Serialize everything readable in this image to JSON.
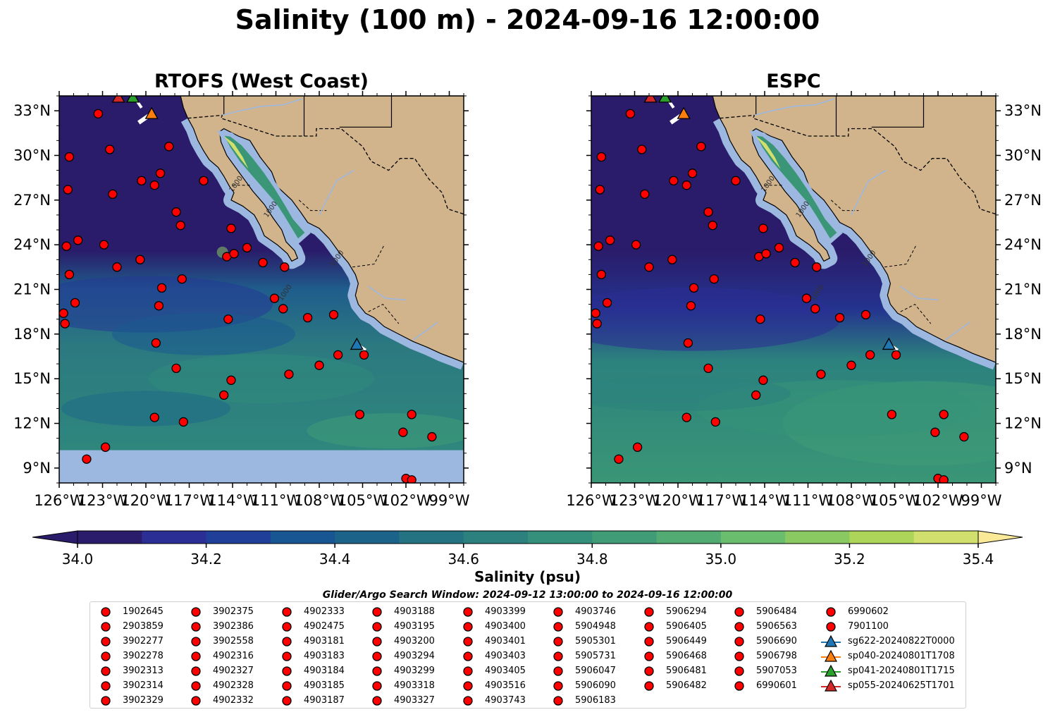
{
  "title": "Salinity (100 m) - 2024-09-16 12:00:00",
  "panels": [
    {
      "title": "RTOFS (West Coast)"
    },
    {
      "title": "ESPC"
    }
  ],
  "map": {
    "lon_ticks": [
      "126°W",
      "123°W",
      "120°W",
      "117°W",
      "114°W",
      "111°W",
      "108°W",
      "105°W",
      "102°W",
      "99°W"
    ],
    "lat_ticks": [
      "33°N",
      "30°N",
      "27°N",
      "24°N",
      "21°N",
      "18°N",
      "15°N",
      "12°N",
      "9°N"
    ],
    "lon_range": [
      -126,
      -98
    ],
    "lat_range": [
      8,
      34
    ],
    "contour_label": "1000",
    "colors": {
      "land": "#d2b48c",
      "shelf": "#9cb8e0",
      "missing_data": "#9cb8e0",
      "rivers": "#9cb8e0",
      "borders": "#000000"
    }
  },
  "colorbar": {
    "label": "Salinity (psu)",
    "ticks": [
      "34.0",
      "34.2",
      "34.4",
      "34.6",
      "34.8",
      "35.0",
      "35.2",
      "35.4"
    ],
    "range": [
      34.0,
      35.4
    ],
    "extend": "both",
    "colors": [
      "#2a1c6a",
      "#2b2e94",
      "#203f99",
      "#185593",
      "#1c6389",
      "#237382",
      "#2c817e",
      "#348f7b",
      "#3f9c77",
      "#52ab72",
      "#69bd6c",
      "#8ac961",
      "#acd55a",
      "#d1e06d",
      "#fae996",
      "#fdf0a8"
    ]
  },
  "legend": {
    "title": "Glider/Argo Search Window: 2024-09-12 13:00:00 to 2024-09-16 12:00:00",
    "columns": [
      [
        "1902645",
        "2903859",
        "3902277",
        "3902278",
        "3902313",
        "3902314",
        "3902329"
      ],
      [
        "3902375",
        "3902386",
        "3902558",
        "4902316",
        "4902327",
        "4902328",
        "4902332"
      ],
      [
        "4902333",
        "4902475",
        "4903181",
        "4903183",
        "4903184",
        "4903185",
        "4903187"
      ],
      [
        "4903188",
        "4903195",
        "4903200",
        "4903294",
        "4903299",
        "4903318",
        "4903327"
      ],
      [
        "4903399",
        "4903400",
        "4903401",
        "4903403",
        "4903405",
        "4903516",
        "4903743"
      ],
      [
        "4903746",
        "5904948",
        "5905301",
        "5905731",
        "5906047",
        "5906090",
        "5906183"
      ],
      [
        "5906294",
        "5906405",
        "5906449",
        "5906468",
        "5906481",
        "5906482"
      ],
      [
        "5906484",
        "5906563",
        "5906690",
        "5906798",
        "5907053",
        "6990601"
      ],
      [
        "6990602",
        "7901100"
      ]
    ],
    "gliders": [
      {
        "name": "sg622-20240822T0000",
        "color": "#1f77b4"
      },
      {
        "name": "sp040-20240801T1708",
        "color": "#ff7f0e"
      },
      {
        "name": "sp041-20240801T1715",
        "color": "#2ca02c"
      },
      {
        "name": "sp055-20240625T1701",
        "color": "#d62728"
      }
    ],
    "argo_color": "#ff0000"
  },
  "argo_positions": [
    [
      -123.3,
      32.8
    ],
    [
      -122.5,
      30.4
    ],
    [
      -125.3,
      29.9
    ],
    [
      -125.4,
      27.7
    ],
    [
      -122.3,
      27.4
    ],
    [
      -120.3,
      28.3
    ],
    [
      -119.4,
      28.0
    ],
    [
      -119.0,
      28.8
    ],
    [
      -118.4,
      30.6
    ],
    [
      -116.0,
      28.3
    ],
    [
      -117.9,
      26.2
    ],
    [
      -117.6,
      25.3
    ],
    [
      -114.1,
      25.1
    ],
    [
      -125.5,
      23.9
    ],
    [
      -124.7,
      24.3
    ],
    [
      -122.9,
      24.0
    ],
    [
      -122.0,
      22.5
    ],
    [
      -120.4,
      23.0
    ],
    [
      -125.3,
      22.0
    ],
    [
      -114.4,
      23.2
    ],
    [
      -113.9,
      23.4
    ],
    [
      -113.0,
      23.8
    ],
    [
      -111.9,
      22.8
    ],
    [
      -110.4,
      22.5
    ],
    [
      -118.9,
      21.1
    ],
    [
      -117.5,
      21.7
    ],
    [
      -124.9,
      20.1
    ],
    [
      -119.1,
      19.9
    ],
    [
      -111.1,
      20.4
    ],
    [
      -110.5,
      19.7
    ],
    [
      -125.7,
      19.4
    ],
    [
      -125.6,
      18.7
    ],
    [
      -114.3,
      19.0
    ],
    [
      -108.8,
      19.1
    ],
    [
      -107.0,
      19.3
    ],
    [
      -119.3,
      17.4
    ],
    [
      -117.9,
      15.7
    ],
    [
      -110.1,
      15.3
    ],
    [
      -108.0,
      15.9
    ],
    [
      -106.7,
      16.6
    ],
    [
      -104.9,
      16.6
    ],
    [
      -114.1,
      14.9
    ],
    [
      -114.6,
      13.9
    ],
    [
      -119.4,
      12.4
    ],
    [
      -117.4,
      12.1
    ],
    [
      -105.2,
      12.6
    ],
    [
      -102.2,
      11.4
    ],
    [
      -101.6,
      12.6
    ],
    [
      -100.2,
      11.1
    ],
    [
      -122.8,
      10.4
    ],
    [
      -124.1,
      9.6
    ],
    [
      -102.0,
      8.3
    ],
    [
      -101.6,
      8.2
    ]
  ],
  "glider_positions": [
    {
      "glider": "sp055",
      "lon": -121.9,
      "lat": 33.9
    },
    {
      "glider": "sp041",
      "lon": -120.9,
      "lat": 33.9
    },
    {
      "glider": "sp040",
      "lon": -119.6,
      "lat": 32.8
    },
    {
      "glider": "sg622",
      "lon": -105.4,
      "lat": 17.3
    }
  ]
}
